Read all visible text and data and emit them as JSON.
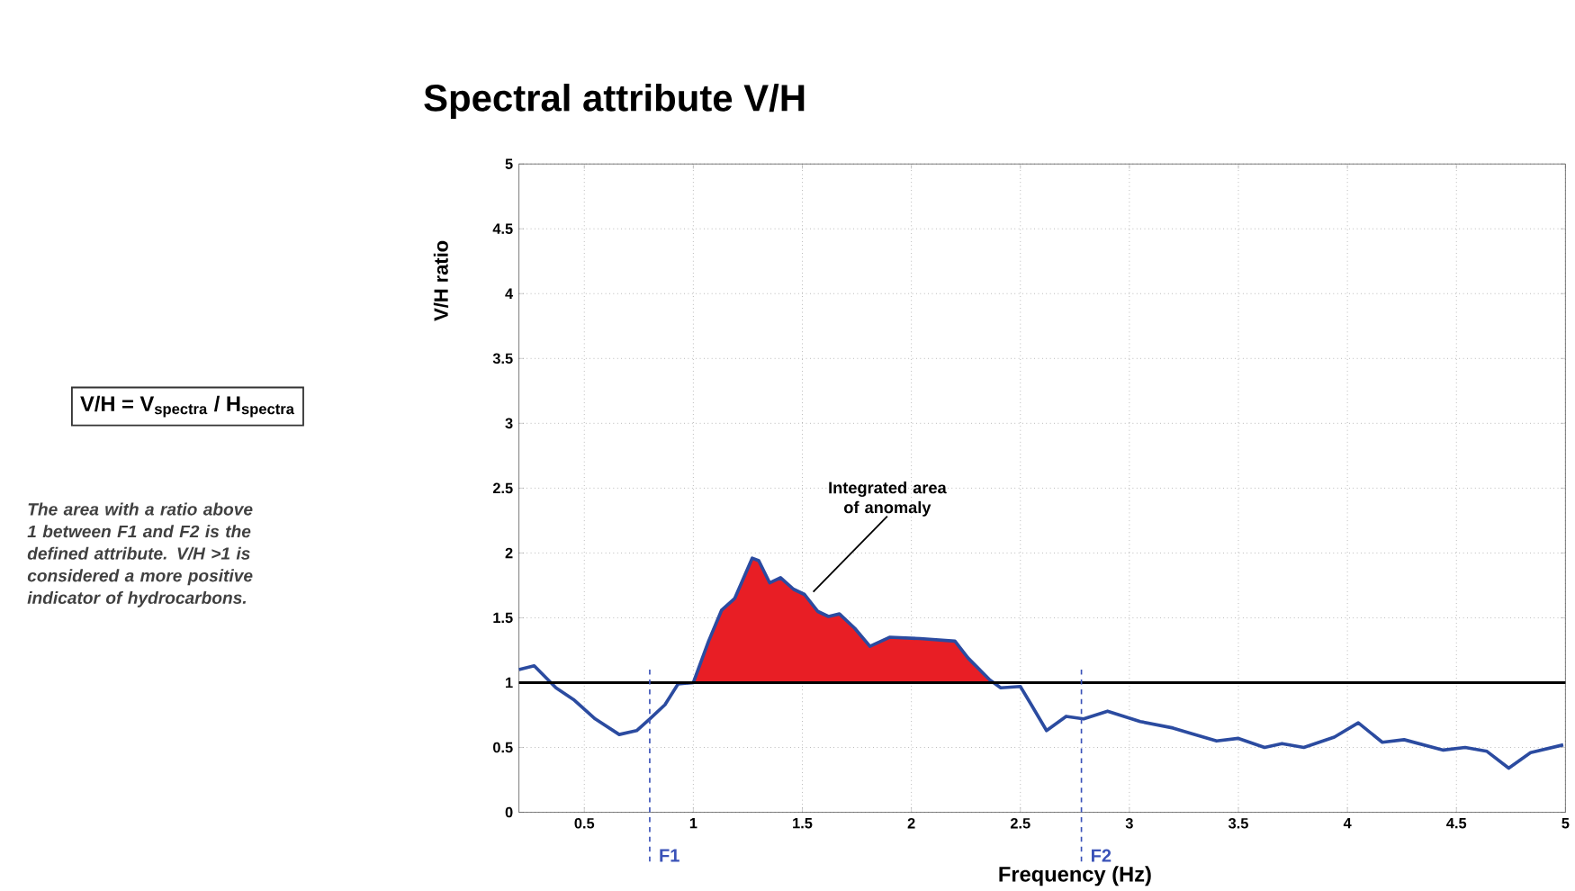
{
  "chart_data": {
    "type": "line",
    "title": "Spectral attribute V/H",
    "xlabel": "Frequency (Hz)",
    "ylabel": "V/H ratio",
    "xlim": [
      0.2,
      5
    ],
    "ylim": [
      0,
      5
    ],
    "xticks": [
      0.5,
      1,
      1.5,
      2,
      2.5,
      3,
      3.5,
      4,
      4.5,
      5
    ],
    "yticks": [
      0,
      0.5,
      1,
      1.5,
      2,
      2.5,
      3,
      3.5,
      4,
      4.5,
      5
    ],
    "grid": true,
    "marker": "none",
    "line_style": "solid",
    "series": [
      {
        "color": "#2b4ba0",
        "x": [
          0.2,
          0.27,
          0.37,
          0.45,
          0.55,
          0.66,
          0.74,
          0.8,
          0.87,
          0.93,
          1.0,
          1.07,
          1.13,
          1.19,
          1.27,
          1.3,
          1.35,
          1.4,
          1.46,
          1.51,
          1.57,
          1.62,
          1.67,
          1.74,
          1.81,
          1.9,
          2.04,
          2.2,
          2.26,
          2.36,
          2.41,
          2.5,
          2.55,
          2.62,
          2.71,
          2.79,
          2.9,
          3.05,
          3.2,
          3.28,
          3.4,
          3.5,
          3.62,
          3.7,
          3.8,
          3.94,
          4.05,
          4.16,
          4.26,
          4.44,
          4.54,
          4.64,
          4.74,
          4.84,
          4.99
        ],
        "values": [
          1.1,
          1.13,
          0.96,
          0.87,
          0.72,
          0.6,
          0.63,
          0.72,
          0.83,
          0.99,
          1.0,
          1.32,
          1.56,
          1.65,
          1.96,
          1.94,
          1.77,
          1.81,
          1.72,
          1.68,
          1.55,
          1.51,
          1.53,
          1.42,
          1.28,
          1.35,
          1.34,
          1.32,
          1.19,
          1.02,
          0.96,
          0.97,
          0.83,
          0.63,
          0.74,
          0.72,
          0.78,
          0.7,
          0.65,
          0.61,
          0.55,
          0.57,
          0.5,
          0.53,
          0.5,
          0.58,
          0.69,
          0.54,
          0.56,
          0.48,
          0.5,
          0.47,
          0.34,
          0.46,
          0.52
        ]
      },
      {
        "type": "area",
        "color": "#e81e25",
        "x": [
          1.0,
          1.07,
          1.13,
          1.19,
          1.27,
          1.3,
          1.35,
          1.4,
          1.46,
          1.51,
          1.57,
          1.62,
          1.67,
          1.74,
          1.81,
          1.9,
          2.04,
          2.2,
          2.26,
          2.36
        ],
        "values": [
          1.0,
          1.32,
          1.56,
          1.65,
          1.96,
          1.94,
          1.77,
          1.81,
          1.72,
          1.68,
          1.55,
          1.51,
          1.53,
          1.42,
          1.28,
          1.35,
          1.34,
          1.32,
          1.19,
          1.02
        ]
      }
    ],
    "ref_lines": [
      {
        "axis": "y",
        "value": 1,
        "color": "#000000",
        "line_style": "solid"
      },
      {
        "axis": "x",
        "value": 0.8,
        "label": "F1",
        "color": "#3a52b8",
        "line_style": "dashed"
      },
      {
        "axis": "x",
        "value": 2.78,
        "label": "F2",
        "color": "#3a52b8",
        "line_style": "dashed"
      }
    ],
    "annotations": [
      {
        "text": "Integrated area of anomaly",
        "x": 1.55,
        "y": 1.7
      },
      "V/H = V$_{spectra}$ / H$_{spectra}$",
      "*The area with a ratio above 1 between F1 and F2 is the defined attribute. V/H >1 is considered a more positive indicator of hydrocarbons.*"
    ]
  }
}
